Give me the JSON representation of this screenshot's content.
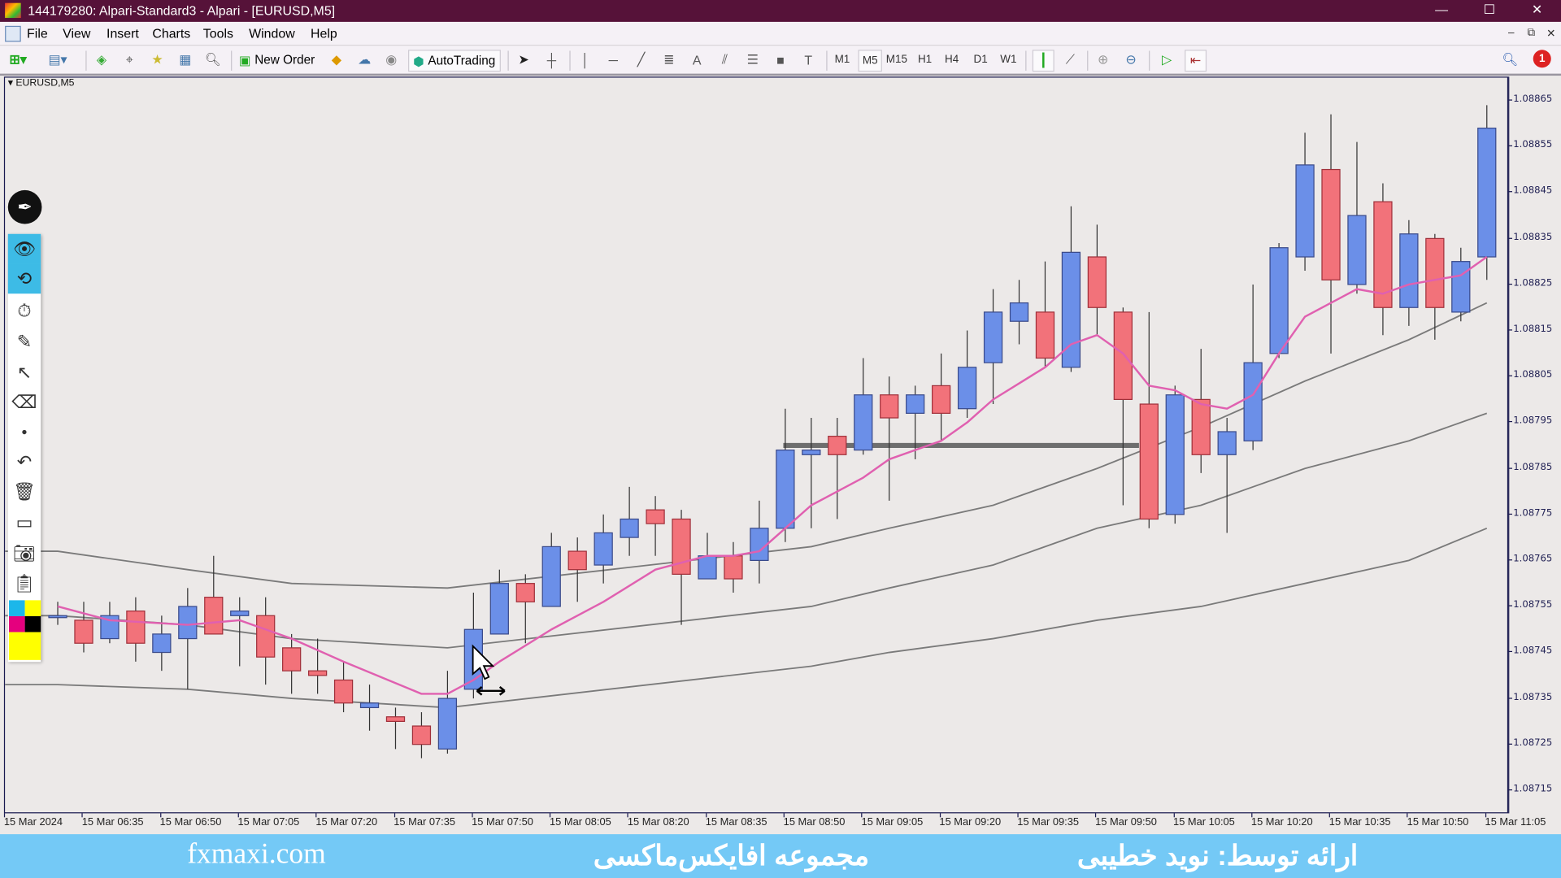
{
  "window": {
    "title": "144179280: Alpari-Standard3 - Alpari - [EURUSD,M5]",
    "controls": [
      "—",
      "☐",
      "✕"
    ]
  },
  "menu": {
    "items": [
      "File",
      "View",
      "Insert",
      "Charts",
      "Tools",
      "Window",
      "Help"
    ],
    "mdi_controls": [
      "–",
      "⧉",
      "✕"
    ]
  },
  "toolbar": {
    "new_order_label": "New Order",
    "autotrading_label": "AutoTrading",
    "timeframes": [
      "M1",
      "M5",
      "M15",
      "H1",
      "H4",
      "D1",
      "W1"
    ],
    "active_timeframe": "M5",
    "notification_count": "1"
  },
  "chart": {
    "symbol_label": "EURUSD,M5",
    "colors": {
      "bull": "#6b8fe8",
      "bear": "#f2727a",
      "fast_ma": "#e060b0",
      "bands": "#7a7a7a",
      "background": "#ece9e8"
    }
  },
  "side_panel": {
    "tools": [
      "pen-logo",
      "eye-icon",
      "cursor-select-icon",
      "stopwatch-icon",
      "highlighter-icon",
      "arrow-icon",
      "eraser-icon",
      "dot-icon",
      "undo-icon",
      "trash-icon",
      "whiteboard-icon",
      "camera-icon",
      "clipboard-icon"
    ],
    "swatches": [
      "#1cb7ea",
      "#ffff00",
      "#e5007e",
      "#000000",
      "#ffff00"
    ]
  },
  "banner": {
    "site": "fxmaxi.com",
    "collection": "مجموعه افایکس‌ماکسی",
    "presenter": "ارائه توسط: نوید خطیبی"
  },
  "chart_data": {
    "type": "candlestick",
    "symbol": "EURUSD",
    "timeframe": "M5",
    "date": "15 Mar 2024",
    "price_ticks": [
      "1.08865",
      "1.08855",
      "1.08845",
      "1.08835",
      "1.08825",
      "1.08815",
      "1.08805",
      "1.08795",
      "1.08785",
      "1.08775",
      "1.08765",
      "1.08755",
      "1.08745",
      "1.08735",
      "1.08725",
      "1.08715"
    ],
    "time_labels": [
      "15 Mar 2024",
      "15 Mar 06:35",
      "15 Mar 06:50",
      "15 Mar 07:05",
      "15 Mar 07:20",
      "15 Mar 07:35",
      "15 Mar 07:50",
      "15 Mar 08:05",
      "15 Mar 08:20",
      "15 Mar 08:35",
      "15 Mar 08:50",
      "15 Mar 09:05",
      "15 Mar 09:20",
      "15 Mar 09:35",
      "15 Mar 09:50",
      "15 Mar 10:05",
      "15 Mar 10:20",
      "15 Mar 10:35",
      "15 Mar 10:50",
      "15 Mar 11:05"
    ],
    "candles": [
      {
        "t": "06:30",
        "o": 1.08753,
        "h": 1.08756,
        "l": 1.08751,
        "c": 1.08753
      },
      {
        "t": "06:35",
        "o": 1.08752,
        "h": 1.08756,
        "l": 1.08745,
        "c": 1.08747
      },
      {
        "t": "06:40",
        "o": 1.08748,
        "h": 1.08756,
        "l": 1.08747,
        "c": 1.08753
      },
      {
        "t": "06:45",
        "o": 1.08754,
        "h": 1.08757,
        "l": 1.08743,
        "c": 1.08747
      },
      {
        "t": "06:50",
        "o": 1.08745,
        "h": 1.08753,
        "l": 1.08741,
        "c": 1.08749
      },
      {
        "t": "06:55",
        "o": 1.08748,
        "h": 1.08759,
        "l": 1.08737,
        "c": 1.08755
      },
      {
        "t": "07:00",
        "o": 1.08757,
        "h": 1.08766,
        "l": 1.08749,
        "c": 1.08749
      },
      {
        "t": "07:05",
        "o": 1.08753,
        "h": 1.08757,
        "l": 1.08742,
        "c": 1.08754
      },
      {
        "t": "07:10",
        "o": 1.08753,
        "h": 1.08757,
        "l": 1.08738,
        "c": 1.08744
      },
      {
        "t": "07:15",
        "o": 1.08746,
        "h": 1.08749,
        "l": 1.08736,
        "c": 1.08741
      },
      {
        "t": "07:20",
        "o": 1.08741,
        "h": 1.08748,
        "l": 1.08736,
        "c": 1.0874
      },
      {
        "t": "07:25",
        "o": 1.08739,
        "h": 1.08743,
        "l": 1.08732,
        "c": 1.08734
      },
      {
        "t": "07:30",
        "o": 1.08733,
        "h": 1.08738,
        "l": 1.08728,
        "c": 1.08734
      },
      {
        "t": "07:35",
        "o": 1.08731,
        "h": 1.08733,
        "l": 1.08724,
        "c": 1.0873
      },
      {
        "t": "07:40",
        "o": 1.08729,
        "h": 1.08732,
        "l": 1.08722,
        "c": 1.08725
      },
      {
        "t": "07:45",
        "o": 1.08724,
        "h": 1.08741,
        "l": 1.08723,
        "c": 1.08735
      },
      {
        "t": "07:50",
        "o": 1.08737,
        "h": 1.08758,
        "l": 1.08735,
        "c": 1.0875
      },
      {
        "t": "07:55",
        "o": 1.08749,
        "h": 1.08763,
        "l": 1.08749,
        "c": 1.0876
      },
      {
        "t": "08:00",
        "o": 1.0876,
        "h": 1.08762,
        "l": 1.08747,
        "c": 1.08756
      },
      {
        "t": "08:05",
        "o": 1.08755,
        "h": 1.08771,
        "l": 1.08755,
        "c": 1.08768
      },
      {
        "t": "08:10",
        "o": 1.08767,
        "h": 1.0877,
        "l": 1.08756,
        "c": 1.08763
      },
      {
        "t": "08:15",
        "o": 1.08764,
        "h": 1.08775,
        "l": 1.0876,
        "c": 1.08771
      },
      {
        "t": "08:20",
        "o": 1.0877,
        "h": 1.08781,
        "l": 1.08766,
        "c": 1.08774
      },
      {
        "t": "08:25",
        "o": 1.08776,
        "h": 1.08779,
        "l": 1.08766,
        "c": 1.08773
      },
      {
        "t": "08:30",
        "o": 1.08774,
        "h": 1.08776,
        "l": 1.08751,
        "c": 1.08762
      },
      {
        "t": "08:35",
        "o": 1.08761,
        "h": 1.08771,
        "l": 1.08761,
        "c": 1.08766
      },
      {
        "t": "08:40",
        "o": 1.08766,
        "h": 1.08769,
        "l": 1.08758,
        "c": 1.08761
      },
      {
        "t": "08:45",
        "o": 1.08765,
        "h": 1.08778,
        "l": 1.0876,
        "c": 1.08772
      },
      {
        "t": "08:50",
        "o": 1.08772,
        "h": 1.08798,
        "l": 1.08769,
        "c": 1.08789
      },
      {
        "t": "08:55",
        "o": 1.08788,
        "h": 1.08796,
        "l": 1.08772,
        "c": 1.08789
      },
      {
        "t": "09:00",
        "o": 1.08792,
        "h": 1.08796,
        "l": 1.08774,
        "c": 1.08788
      },
      {
        "t": "09:05",
        "o": 1.08789,
        "h": 1.08809,
        "l": 1.08788,
        "c": 1.08801
      },
      {
        "t": "09:10",
        "o": 1.08801,
        "h": 1.08805,
        "l": 1.08778,
        "c": 1.08796
      },
      {
        "t": "09:15",
        "o": 1.08797,
        "h": 1.08803,
        "l": 1.08787,
        "c": 1.08801
      },
      {
        "t": "09:20",
        "o": 1.08803,
        "h": 1.0881,
        "l": 1.08791,
        "c": 1.08797
      },
      {
        "t": "09:25",
        "o": 1.08798,
        "h": 1.08815,
        "l": 1.08796,
        "c": 1.08807
      },
      {
        "t": "09:30",
        "o": 1.08808,
        "h": 1.08824,
        "l": 1.08799,
        "c": 1.08819
      },
      {
        "t": "09:35",
        "o": 1.08817,
        "h": 1.08826,
        "l": 1.08812,
        "c": 1.08821
      },
      {
        "t": "09:40",
        "o": 1.08819,
        "h": 1.0883,
        "l": 1.08807,
        "c": 1.08809
      },
      {
        "t": "09:45",
        "o": 1.08807,
        "h": 1.08842,
        "l": 1.08806,
        "c": 1.08832
      },
      {
        "t": "09:50",
        "o": 1.08831,
        "h": 1.08838,
        "l": 1.08814,
        "c": 1.0882
      },
      {
        "t": "09:55",
        "o": 1.08819,
        "h": 1.0882,
        "l": 1.08777,
        "c": 1.088
      },
      {
        "t": "10:00",
        "o": 1.08799,
        "h": 1.08819,
        "l": 1.08772,
        "c": 1.08774
      },
      {
        "t": "10:05",
        "o": 1.08775,
        "h": 1.08803,
        "l": 1.08773,
        "c": 1.08801
      },
      {
        "t": "10:10",
        "o": 1.088,
        "h": 1.08811,
        "l": 1.08784,
        "c": 1.08788
      },
      {
        "t": "10:15",
        "o": 1.08788,
        "h": 1.08796,
        "l": 1.08771,
        "c": 1.08793
      },
      {
        "t": "10:20",
        "o": 1.08791,
        "h": 1.08825,
        "l": 1.08789,
        "c": 1.08808
      },
      {
        "t": "10:25",
        "o": 1.0881,
        "h": 1.08834,
        "l": 1.08809,
        "c": 1.08833
      },
      {
        "t": "10:30",
        "o": 1.08831,
        "h": 1.08858,
        "l": 1.08828,
        "c": 1.08851
      },
      {
        "t": "10:35",
        "o": 1.0885,
        "h": 1.08862,
        "l": 1.0881,
        "c": 1.08826
      },
      {
        "t": "10:40",
        "o": 1.08825,
        "h": 1.08856,
        "l": 1.08823,
        "c": 1.0884
      },
      {
        "t": "10:45",
        "o": 1.08843,
        "h": 1.08847,
        "l": 1.08814,
        "c": 1.0882
      },
      {
        "t": "10:50",
        "o": 1.0882,
        "h": 1.08839,
        "l": 1.08816,
        "c": 1.08836
      },
      {
        "t": "10:55",
        "o": 1.08835,
        "h": 1.08836,
        "l": 1.08813,
        "c": 1.0882
      },
      {
        "t": "11:00",
        "o": 1.08819,
        "h": 1.08833,
        "l": 1.08817,
        "c": 1.0883
      },
      {
        "t": "11:05",
        "o": 1.08831,
        "h": 1.08864,
        "l": 1.08826,
        "c": 1.08859
      }
    ],
    "fast_ma": [
      [
        "06:30",
        1.08755
      ],
      [
        "06:40",
        1.08752
      ],
      [
        "06:55",
        1.08751
      ],
      [
        "07:05",
        1.08752
      ],
      [
        "07:10",
        1.0875
      ],
      [
        "07:15",
        1.08748
      ],
      [
        "07:25",
        1.08743
      ],
      [
        "07:40",
        1.08736
      ],
      [
        "07:45",
        1.08736
      ],
      [
        "07:50",
        1.08739
      ],
      [
        "07:55",
        1.08743
      ],
      [
        "08:05",
        1.0875
      ],
      [
        "08:15",
        1.08756
      ],
      [
        "08:25",
        1.08763
      ],
      [
        "08:35",
        1.08766
      ],
      [
        "08:40",
        1.08766
      ],
      [
        "08:45",
        1.08767
      ],
      [
        "08:50",
        1.08772
      ],
      [
        "08:55",
        1.08777
      ],
      [
        "09:05",
        1.08783
      ],
      [
        "09:10",
        1.08787
      ],
      [
        "09:20",
        1.08791
      ],
      [
        "09:25",
        1.08795
      ],
      [
        "09:30",
        1.088
      ],
      [
        "09:40",
        1.08807
      ],
      [
        "09:45",
        1.08812
      ],
      [
        "09:50",
        1.08814
      ],
      [
        "09:55",
        1.0881
      ],
      [
        "10:00",
        1.08803
      ],
      [
        "10:05",
        1.08802
      ],
      [
        "10:10",
        1.08799
      ],
      [
        "10:15",
        1.08798
      ],
      [
        "10:20",
        1.08801
      ],
      [
        "10:25",
        1.0881
      ],
      [
        "10:30",
        1.08818
      ],
      [
        "10:35",
        1.08821
      ],
      [
        "10:40",
        1.08824
      ],
      [
        "10:45",
        1.08823
      ],
      [
        "10:50",
        1.08825
      ],
      [
        "10:55",
        1.08826
      ],
      [
        "11:00",
        1.08827
      ],
      [
        "11:05",
        1.08831
      ]
    ],
    "bands": {
      "upper": [
        [
          "06:30",
          1.08767
        ],
        [
          "06:55",
          1.08763
        ],
        [
          "07:15",
          1.0876
        ],
        [
          "07:45",
          1.08759
        ],
        [
          "08:55",
          1.08768
        ],
        [
          "09:10",
          1.08772
        ],
        [
          "09:30",
          1.08777
        ],
        [
          "09:50",
          1.08785
        ],
        [
          "10:10",
          1.08794
        ],
        [
          "10:30",
          1.08804
        ],
        [
          "10:50",
          1.08813
        ],
        [
          "11:05",
          1.08821
        ]
      ],
      "middle": [
        [
          "06:30",
          1.08753
        ],
        [
          "06:55",
          1.08751
        ],
        [
          "07:15",
          1.08748
        ],
        [
          "07:45",
          1.08746
        ],
        [
          "08:55",
          1.08755
        ],
        [
          "09:10",
          1.08759
        ],
        [
          "09:30",
          1.08764
        ],
        [
          "09:50",
          1.08772
        ],
        [
          "10:10",
          1.08777
        ],
        [
          "10:30",
          1.08785
        ],
        [
          "10:50",
          1.08791
        ],
        [
          "11:05",
          1.08797
        ]
      ],
      "lower": [
        [
          "06:30",
          1.08738
        ],
        [
          "06:55",
          1.08737
        ],
        [
          "07:15",
          1.08735
        ],
        [
          "07:45",
          1.08733
        ],
        [
          "08:55",
          1.08742
        ],
        [
          "09:10",
          1.08745
        ],
        [
          "09:30",
          1.08748
        ],
        [
          "09:50",
          1.08752
        ],
        [
          "10:10",
          1.08755
        ],
        [
          "10:30",
          1.0876
        ],
        [
          "10:50",
          1.08765
        ],
        [
          "11:05",
          1.08772
        ]
      ]
    },
    "horizontal_line": {
      "price": 1.0879,
      "from": "08:50",
      "to": "09:55"
    },
    "ylim": [
      1.08705,
      1.0887
    ]
  }
}
